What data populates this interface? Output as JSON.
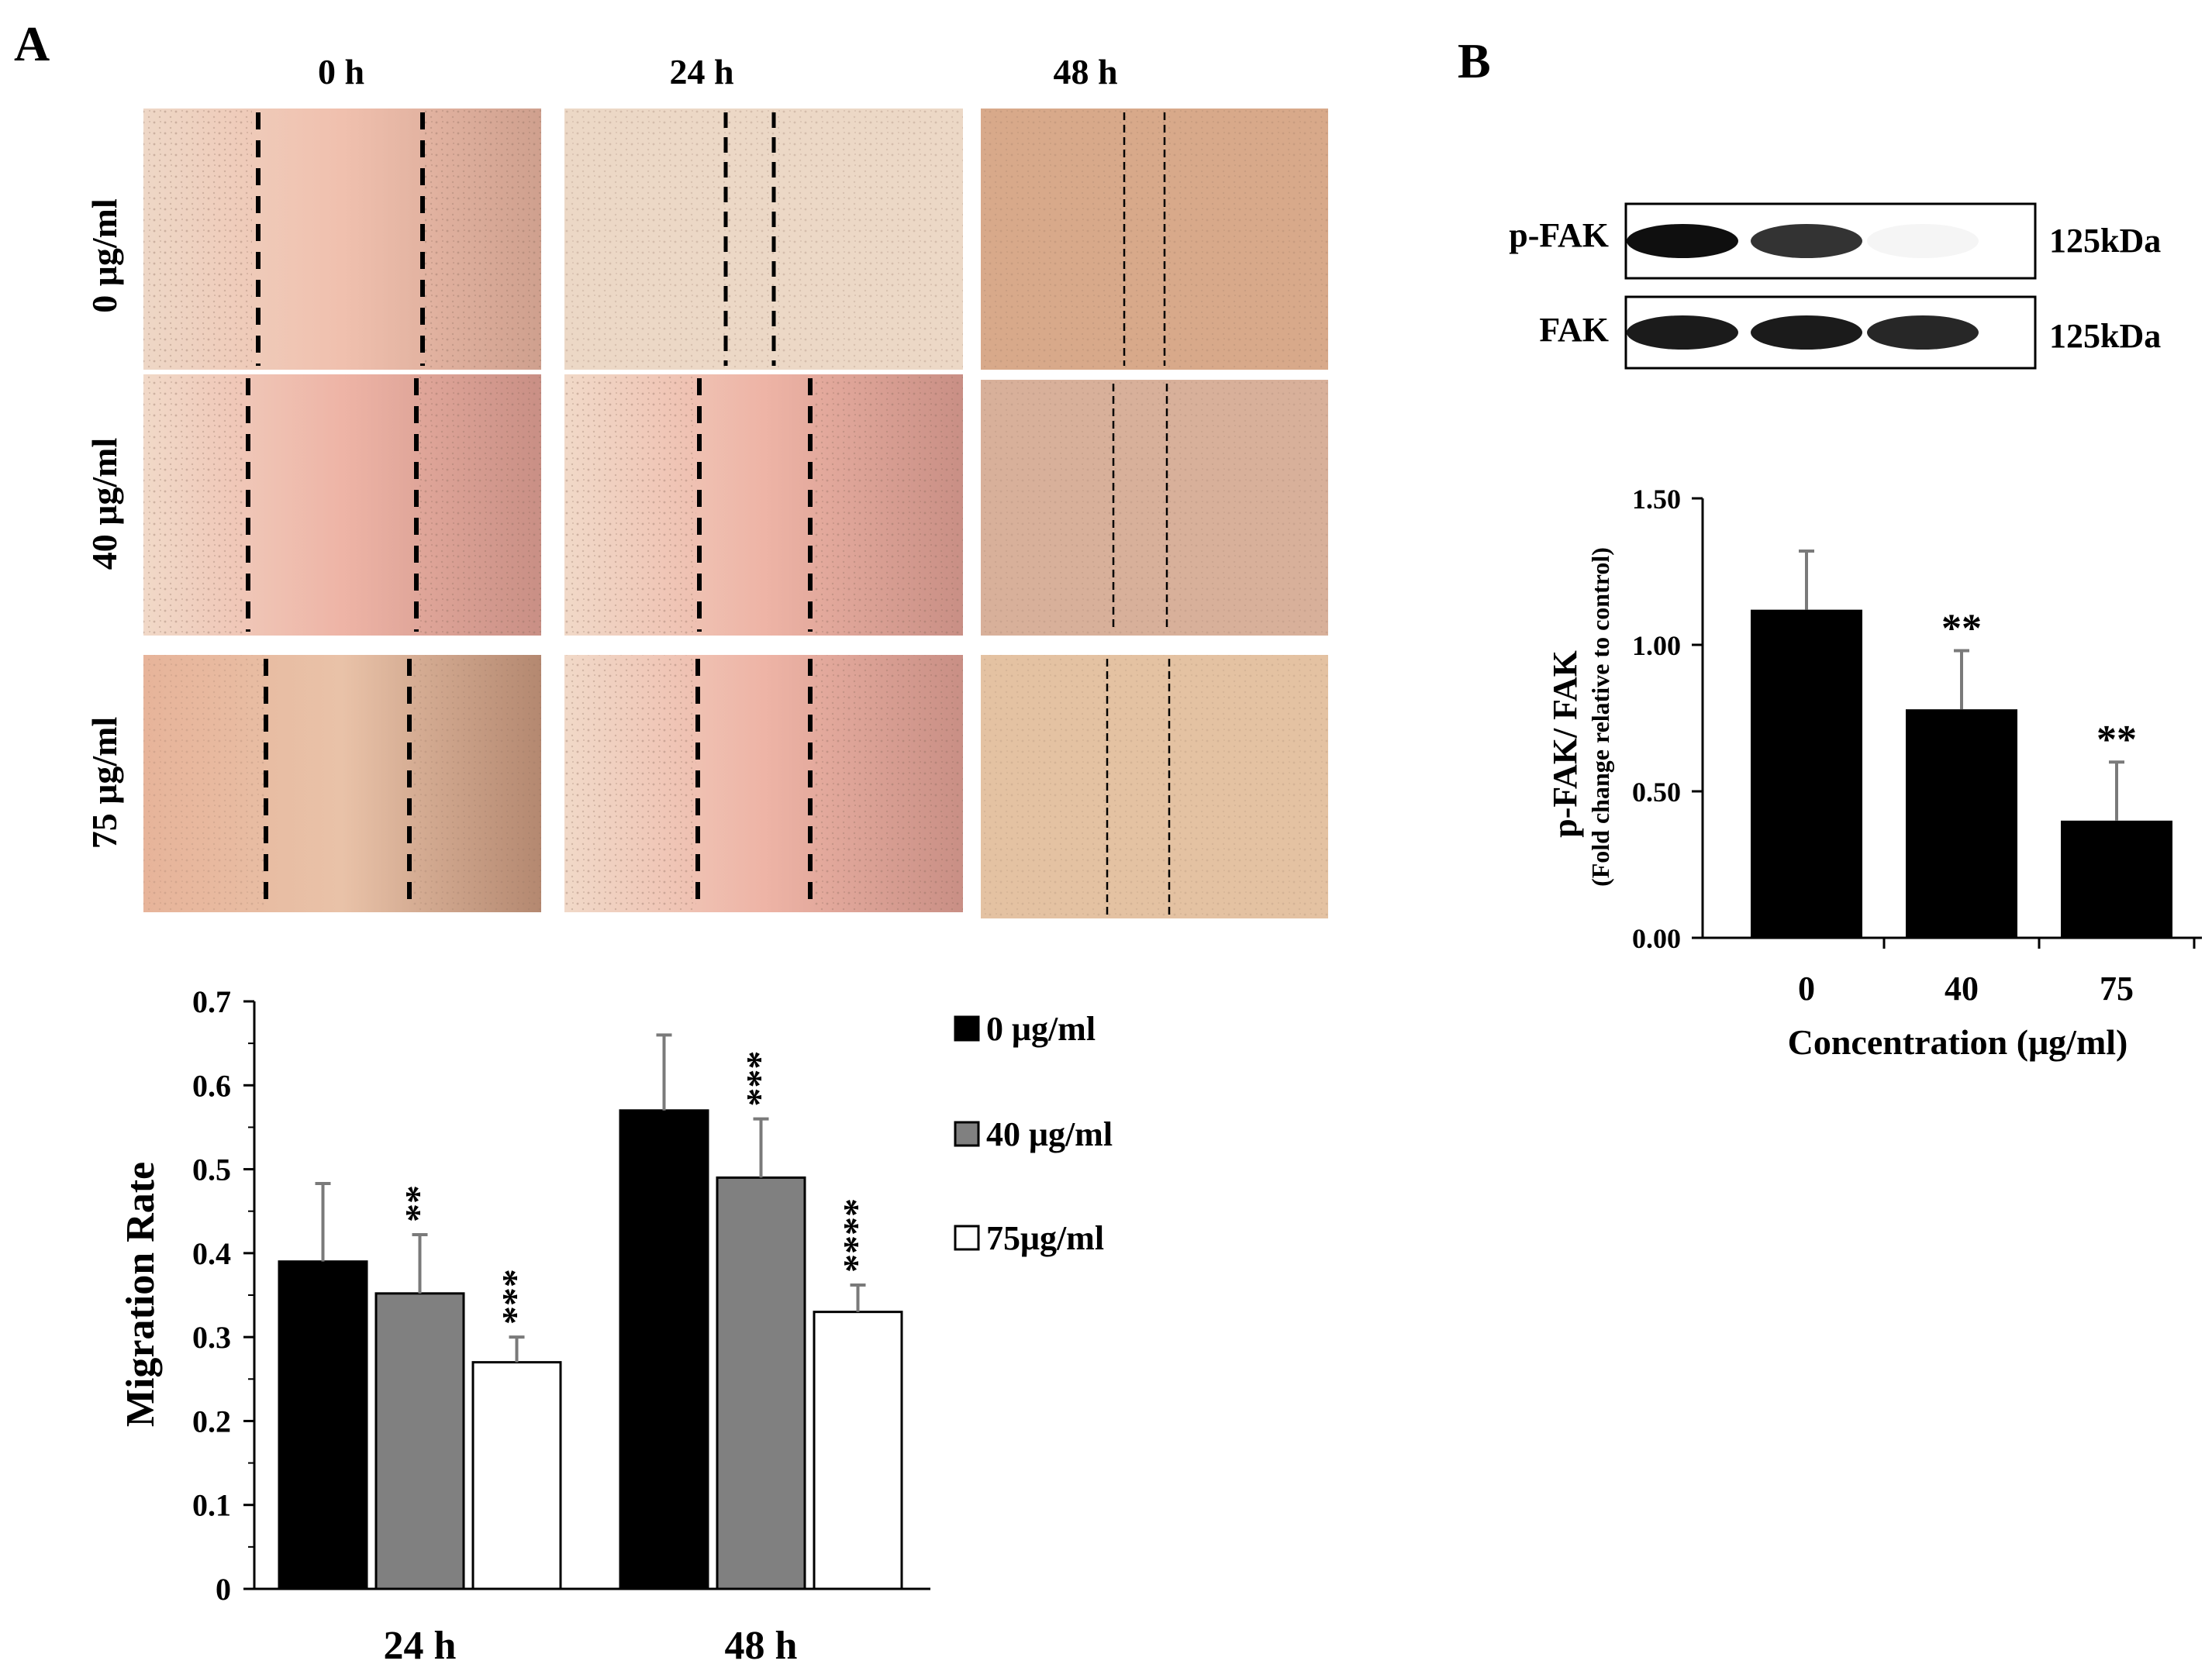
{
  "panel_a": {
    "label": "A",
    "time_labels": [
      "0 h",
      "24 h",
      "48 h"
    ],
    "conc_labels": [
      "0 μg/ml",
      "40 μg/ml",
      "75 μg/ml"
    ]
  },
  "panel_b": {
    "label": "B",
    "blot": {
      "rows": [
        {
          "name": "p-FAK",
          "size": "125kDa",
          "intensity": [
            1.0,
            0.85,
            0.04
          ]
        },
        {
          "name": "FAK",
          "size": "125kDa",
          "intensity": [
            0.95,
            0.95,
            0.9
          ]
        }
      ]
    }
  },
  "colors": {
    "bar_0": "#000000",
    "bar_40": "#808080",
    "bar_75": "#ffffff",
    "error": "#7a7a7a",
    "micro_tint": [
      "#e8c9b6",
      "#e7b3a5",
      "#d9b49a"
    ]
  },
  "chart_data": [
    {
      "id": "migration",
      "type": "bar",
      "categories": [
        "24 h",
        "48 h"
      ],
      "series": [
        {
          "name": "0 μg/ml",
          "values": [
            0.39,
            0.57
          ],
          "errors": [
            0.093,
            0.09
          ],
          "sig": [
            "",
            ""
          ]
        },
        {
          "name": "40 μg/ml",
          "values": [
            0.352,
            0.49
          ],
          "errors": [
            0.07,
            0.07
          ],
          "sig": [
            "**",
            "***"
          ]
        },
        {
          "name": "75μg/ml",
          "values": [
            0.27,
            0.33
          ],
          "errors": [
            0.03,
            0.032
          ],
          "sig": [
            "***",
            "****"
          ]
        }
      ],
      "ylabel": "Migration Rate",
      "xlabel": "",
      "ylim": [
        0,
        0.7
      ],
      "yticks": [
        "0",
        "0.1",
        "0.2",
        "0.3",
        "0.4",
        "0.5",
        "0.6",
        "0.7"
      ],
      "legend": "right"
    },
    {
      "id": "pfak",
      "type": "bar",
      "categories": [
        "0",
        "40",
        "75"
      ],
      "values": [
        1.12,
        0.78,
        0.4
      ],
      "errors": [
        0.2,
        0.2,
        0.2
      ],
      "sig": [
        "",
        "**",
        "**"
      ],
      "ylabel": "p-FAK/ FAK",
      "ylabel_sub": "(Fold change relative to control)",
      "xlabel": "Concentration (μg/ml)",
      "ylim": [
        0,
        1.5
      ],
      "yticks": [
        "0.00",
        "0.50",
        "1.00",
        "1.50"
      ]
    }
  ]
}
